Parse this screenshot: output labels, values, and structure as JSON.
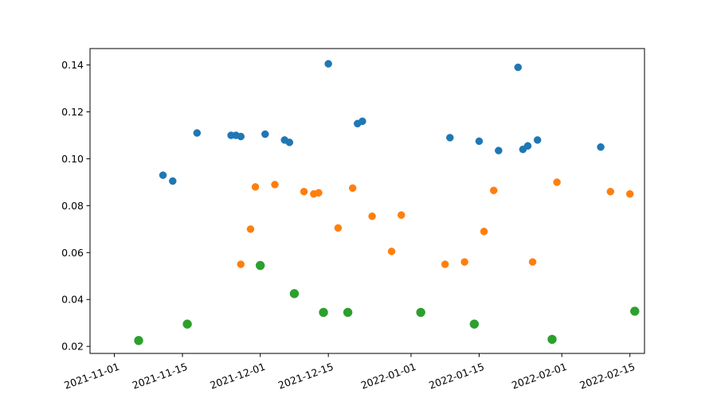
{
  "chart_data": {
    "type": "scatter",
    "title": "",
    "xlabel": "",
    "ylabel": "",
    "x_axis": {
      "type": "date",
      "range": [
        "2021-10-27",
        "2022-02-18"
      ],
      "ticks": [
        "2021-11-01",
        "2021-11-15",
        "2021-12-01",
        "2021-12-15",
        "2022-01-01",
        "2022-01-15",
        "2022-02-01",
        "2022-02-15"
      ],
      "tick_labels": [
        "2021-11-01",
        "2021-11-15",
        "2021-12-01",
        "2021-12-15",
        "2022-01-01",
        "2022-01-15",
        "2022-02-01",
        "2022-02-15"
      ]
    },
    "y_axis": {
      "range": [
        0.017,
        0.147
      ],
      "ticks": [
        0.02,
        0.04,
        0.06,
        0.08,
        0.1,
        0.12,
        0.14
      ],
      "tick_labels": [
        "0.02",
        "0.04",
        "0.06",
        "0.08",
        "0.10",
        "0.12",
        "0.14"
      ]
    },
    "grid": false,
    "legend": "none",
    "series": [
      {
        "color": "#1f77b4",
        "marker_size": "small",
        "points": [
          {
            "x": "2021-11-11",
            "y": 0.093
          },
          {
            "x": "2021-11-13",
            "y": 0.0905
          },
          {
            "x": "2021-11-18",
            "y": 0.111
          },
          {
            "x": "2021-11-25",
            "y": 0.11
          },
          {
            "x": "2021-11-26",
            "y": 0.11
          },
          {
            "x": "2021-11-27",
            "y": 0.1095
          },
          {
            "x": "2021-12-02",
            "y": 0.1105
          },
          {
            "x": "2021-12-06",
            "y": 0.108
          },
          {
            "x": "2021-12-07",
            "y": 0.107
          },
          {
            "x": "2021-12-15",
            "y": 0.1405
          },
          {
            "x": "2021-12-21",
            "y": 0.115
          },
          {
            "x": "2021-12-22",
            "y": 0.116
          },
          {
            "x": "2022-01-09",
            "y": 0.109
          },
          {
            "x": "2022-01-15",
            "y": 0.1075
          },
          {
            "x": "2022-01-19",
            "y": 0.1035
          },
          {
            "x": "2022-01-23",
            "y": 0.139
          },
          {
            "x": "2022-01-24",
            "y": 0.104
          },
          {
            "x": "2022-01-25",
            "y": 0.1055
          },
          {
            "x": "2022-01-27",
            "y": 0.108
          },
          {
            "x": "2022-02-09",
            "y": 0.105
          }
        ]
      },
      {
        "color": "#ff7f0e",
        "marker_size": "small",
        "points": [
          {
            "x": "2021-11-27",
            "y": 0.055
          },
          {
            "x": "2021-11-29",
            "y": 0.07
          },
          {
            "x": "2021-11-30",
            "y": 0.088
          },
          {
            "x": "2021-12-04",
            "y": 0.089
          },
          {
            "x": "2021-12-10",
            "y": 0.086
          },
          {
            "x": "2021-12-12",
            "y": 0.085
          },
          {
            "x": "2021-12-13",
            "y": 0.0855
          },
          {
            "x": "2021-12-17",
            "y": 0.0705
          },
          {
            "x": "2021-12-20",
            "y": 0.0875
          },
          {
            "x": "2021-12-24",
            "y": 0.0755
          },
          {
            "x": "2021-12-28",
            "y": 0.0605
          },
          {
            "x": "2021-12-30",
            "y": 0.076
          },
          {
            "x": "2022-01-08",
            "y": 0.055
          },
          {
            "x": "2022-01-12",
            "y": 0.056
          },
          {
            "x": "2022-01-16",
            "y": 0.069
          },
          {
            "x": "2022-01-18",
            "y": 0.0865
          },
          {
            "x": "2022-01-26",
            "y": 0.056
          },
          {
            "x": "2022-01-31",
            "y": 0.09
          },
          {
            "x": "2022-02-11",
            "y": 0.086
          },
          {
            "x": "2022-02-15",
            "y": 0.085
          }
        ]
      },
      {
        "color": "#2ca02c",
        "marker_size": "large",
        "points": [
          {
            "x": "2021-11-06",
            "y": 0.0225
          },
          {
            "x": "2021-11-16",
            "y": 0.0295
          },
          {
            "x": "2021-12-01",
            "y": 0.0545
          },
          {
            "x": "2021-12-08",
            "y": 0.0425
          },
          {
            "x": "2021-12-14",
            "y": 0.0345
          },
          {
            "x": "2021-12-19",
            "y": 0.0345
          },
          {
            "x": "2022-01-03",
            "y": 0.0345
          },
          {
            "x": "2022-01-14",
            "y": 0.0295
          },
          {
            "x": "2022-01-30",
            "y": 0.023
          },
          {
            "x": "2022-02-16",
            "y": 0.035
          }
        ]
      }
    ]
  }
}
